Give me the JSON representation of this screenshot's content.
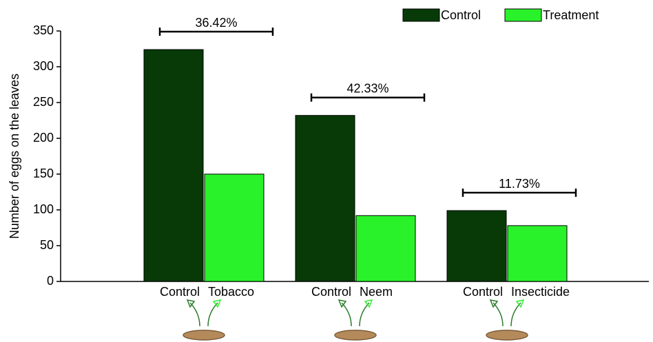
{
  "chart_data": {
    "type": "bar",
    "y_label": "Number of eggs on the leaves",
    "categories": [
      "Tobacco",
      "Neem",
      "Insecticide"
    ],
    "series": [
      {
        "name": "Control",
        "color": "#073a07",
        "values": [
          324,
          232,
          99
        ]
      },
      {
        "name": "Treatment",
        "color": "#2af22a",
        "values": [
          150,
          92,
          78
        ]
      }
    ],
    "annotations": [
      "36.42%",
      "42.33%",
      "11.73%"
    ],
    "ylim": [
      0,
      350
    ],
    "yticks": [
      0,
      50,
      100,
      150,
      200,
      250,
      300,
      350
    ],
    "grid": false,
    "legend": "top-right"
  }
}
